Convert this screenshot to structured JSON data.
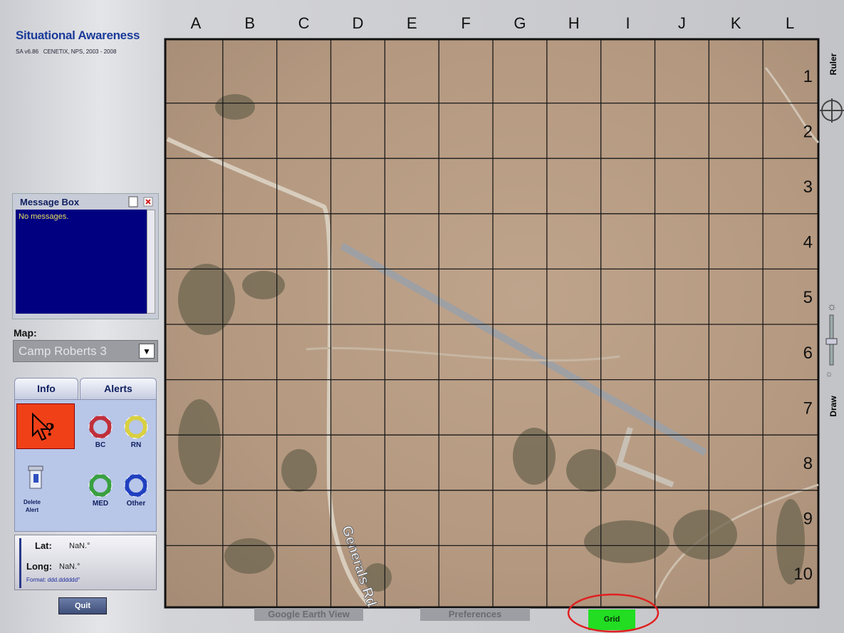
{
  "header": {
    "title": "Situational Awareness",
    "version": "SA v6.86   CENETIX, NPS, 2003 - 2008"
  },
  "message_box": {
    "title": "Message Box",
    "content": "No messages."
  },
  "map_selector": {
    "label": "Map:",
    "value": "Camp Roberts 3"
  },
  "tabs": [
    "Info",
    "Alerts"
  ],
  "alerts": [
    {
      "label": "BC",
      "color": "#c0303a"
    },
    {
      "label": "RN",
      "color": "#d8d040"
    },
    {
      "label": "MED",
      "color": "#3aa040"
    },
    {
      "label": "Other",
      "color": "#2040c0"
    }
  ],
  "delete_alert": "Delete\nAlert",
  "coordinates": {
    "lat_label": "Lat:",
    "lat_value": "NaN.°",
    "long_label": "Long:",
    "long_value": "NaN.°",
    "format": "Format: ddd.dddddd°"
  },
  "quit": "Quit",
  "grid": {
    "columns": [
      "A",
      "B",
      "C",
      "D",
      "E",
      "F",
      "G",
      "H",
      "I",
      "J",
      "K",
      "L"
    ],
    "rows": [
      1,
      2,
      3,
      4,
      5,
      6,
      7,
      8,
      9,
      10
    ]
  },
  "map_label": "Generals Rd",
  "side_tools": [
    "Ruler",
    "Draw"
  ],
  "bottom_buttons": [
    "Google Earth View",
    "Preferences",
    "Grid"
  ]
}
